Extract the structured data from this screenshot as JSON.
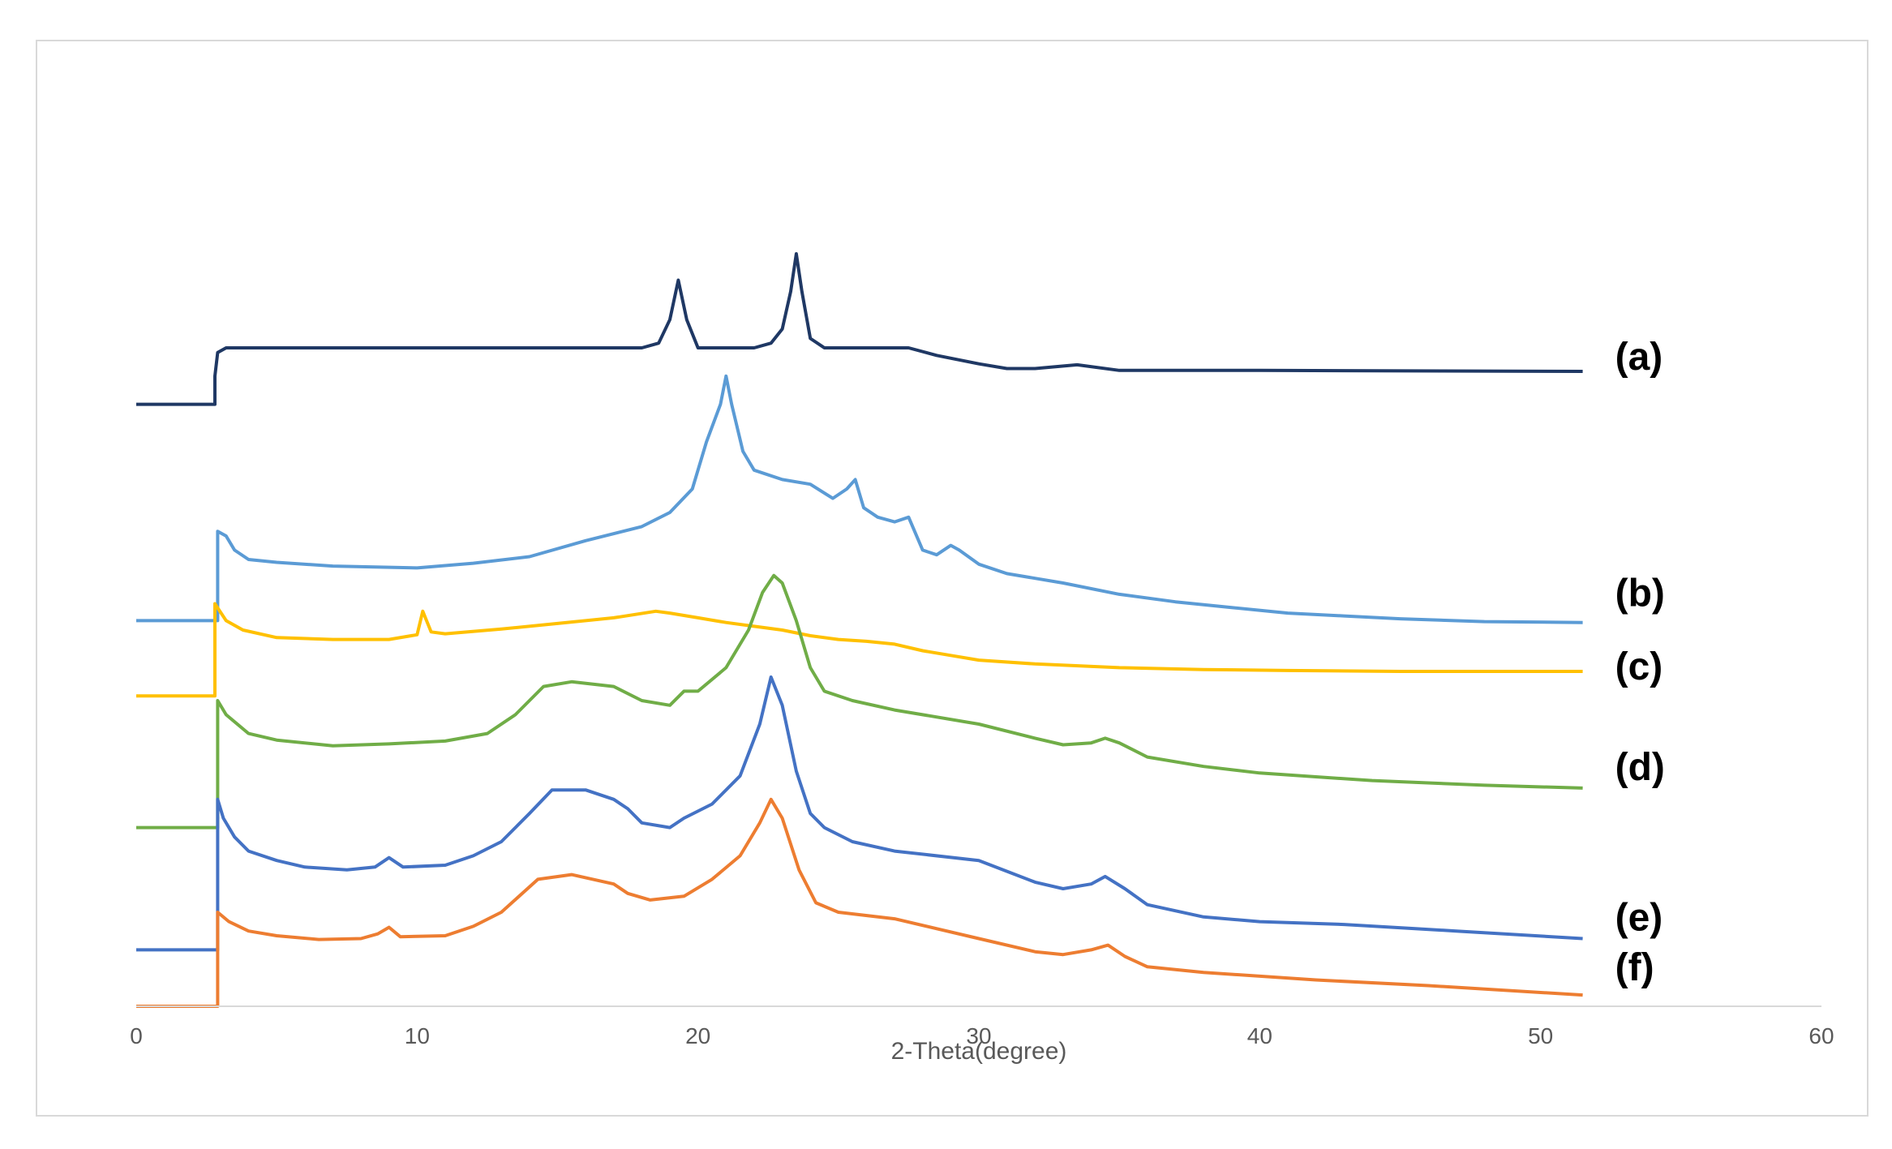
{
  "chart_data": {
    "type": "line",
    "title": "",
    "xlabel": "2-Theta(degree)",
    "ylabel": "",
    "xlim": [
      0,
      60
    ],
    "x_ticks": [
      0,
      10,
      20,
      30,
      40,
      50,
      60
    ],
    "ylim": [
      0,
      100
    ],
    "grid": false,
    "legend": "none",
    "series": [
      {
        "name": "(a)",
        "color": "#1f3864",
        "points": [
          [
            0,
            64
          ],
          [
            2.8,
            64
          ],
          [
            2.8,
            67
          ],
          [
            2.9,
            69.5
          ],
          [
            3.2,
            70
          ],
          [
            10,
            70
          ],
          [
            17,
            70
          ],
          [
            18,
            70
          ],
          [
            18.6,
            70.5
          ],
          [
            19,
            73
          ],
          [
            19.3,
            77.2
          ],
          [
            19.6,
            73
          ],
          [
            20,
            70
          ],
          [
            22,
            70
          ],
          [
            22.6,
            70.5
          ],
          [
            23,
            72
          ],
          [
            23.3,
            76
          ],
          [
            23.5,
            80
          ],
          [
            23.7,
            76
          ],
          [
            24,
            71
          ],
          [
            24.5,
            70
          ],
          [
            26,
            70
          ],
          [
            27.5,
            70
          ],
          [
            28.5,
            69.2
          ],
          [
            30,
            68.3
          ],
          [
            31,
            67.8
          ],
          [
            32,
            67.8
          ],
          [
            33.5,
            68.2
          ],
          [
            35,
            67.6
          ],
          [
            40,
            67.6
          ],
          [
            51.5,
            67.5
          ]
        ]
      },
      {
        "name": "(b)",
        "color": "#5b9bd5",
        "points": [
          [
            0,
            41
          ],
          [
            2.9,
            41
          ],
          [
            2.9,
            50.5
          ],
          [
            3.2,
            50
          ],
          [
            3.5,
            48.5
          ],
          [
            4,
            47.5
          ],
          [
            5,
            47.2
          ],
          [
            7,
            46.8
          ],
          [
            10,
            46.6
          ],
          [
            12,
            47.1
          ],
          [
            14,
            47.8
          ],
          [
            16,
            49.5
          ],
          [
            18,
            51
          ],
          [
            19,
            52.5
          ],
          [
            19.8,
            55
          ],
          [
            20.3,
            60
          ],
          [
            20.8,
            64
          ],
          [
            21,
            67
          ],
          [
            21.2,
            64
          ],
          [
            21.6,
            59
          ],
          [
            22,
            57
          ],
          [
            23,
            56
          ],
          [
            24,
            55.5
          ],
          [
            24.8,
            54
          ],
          [
            25.3,
            55
          ],
          [
            25.6,
            56
          ],
          [
            25.9,
            53
          ],
          [
            26.4,
            52
          ],
          [
            27,
            51.5
          ],
          [
            27.5,
            52
          ],
          [
            28,
            48.5
          ],
          [
            28.5,
            48
          ],
          [
            29,
            49
          ],
          [
            29.3,
            48.5
          ],
          [
            30,
            47
          ],
          [
            31,
            46
          ],
          [
            32,
            45.5
          ],
          [
            33,
            45
          ],
          [
            35,
            43.8
          ],
          [
            37,
            43
          ],
          [
            39,
            42.4
          ],
          [
            41,
            41.8
          ],
          [
            43,
            41.5
          ],
          [
            45,
            41.2
          ],
          [
            48,
            40.9
          ],
          [
            51.5,
            40.8
          ]
        ]
      },
      {
        "name": "(c)",
        "color": "#ffc000",
        "points": [
          [
            0,
            33
          ],
          [
            2.8,
            33
          ],
          [
            2.8,
            42.8
          ],
          [
            3.2,
            41
          ],
          [
            3.8,
            40
          ],
          [
            5,
            39.2
          ],
          [
            7,
            39
          ],
          [
            9,
            39
          ],
          [
            10,
            39.5
          ],
          [
            10.2,
            42
          ],
          [
            10.5,
            39.8
          ],
          [
            11,
            39.6
          ],
          [
            13,
            40.1
          ],
          [
            15,
            40.7
          ],
          [
            17,
            41.3
          ],
          [
            18.5,
            42
          ],
          [
            19,
            41.8
          ],
          [
            20,
            41.3
          ],
          [
            21,
            40.8
          ],
          [
            22,
            40.4
          ],
          [
            23,
            40
          ],
          [
            24,
            39.4
          ],
          [
            25,
            39
          ],
          [
            26,
            38.8
          ],
          [
            27,
            38.5
          ],
          [
            28,
            37.8
          ],
          [
            29,
            37.3
          ],
          [
            30,
            36.8
          ],
          [
            32,
            36.4
          ],
          [
            35,
            36
          ],
          [
            38,
            35.8
          ],
          [
            41,
            35.7
          ],
          [
            45,
            35.6
          ],
          [
            51.5,
            35.6
          ]
        ]
      },
      {
        "name": "(d)",
        "color": "#70ad47",
        "points": [
          [
            0,
            19
          ],
          [
            2.9,
            19
          ],
          [
            2.9,
            32.5
          ],
          [
            3.2,
            31
          ],
          [
            4,
            29
          ],
          [
            5,
            28.3
          ],
          [
            7,
            27.7
          ],
          [
            9,
            27.9
          ],
          [
            11,
            28.2
          ],
          [
            12.5,
            29
          ],
          [
            13.5,
            31
          ],
          [
            14.5,
            34
          ],
          [
            15.5,
            34.5
          ],
          [
            17,
            34
          ],
          [
            18,
            32.5
          ],
          [
            19,
            32
          ],
          [
            19.5,
            33.5
          ],
          [
            20,
            33.5
          ],
          [
            21,
            36
          ],
          [
            21.8,
            40
          ],
          [
            22.3,
            44
          ],
          [
            22.7,
            45.8
          ],
          [
            23,
            45
          ],
          [
            23.5,
            41
          ],
          [
            24,
            36
          ],
          [
            24.5,
            33.5
          ],
          [
            25.5,
            32.5
          ],
          [
            27,
            31.5
          ],
          [
            30,
            30
          ],
          [
            32,
            28.5
          ],
          [
            33,
            27.8
          ],
          [
            34,
            28
          ],
          [
            34.5,
            28.5
          ],
          [
            35,
            28
          ],
          [
            36,
            26.5
          ],
          [
            38,
            25.5
          ],
          [
            40,
            24.8
          ],
          [
            42,
            24.4
          ],
          [
            44,
            24
          ],
          [
            48,
            23.5
          ],
          [
            51.5,
            23.2
          ]
        ]
      },
      {
        "name": "(e)",
        "color": "#4472c4",
        "points": [
          [
            0,
            6
          ],
          [
            2.9,
            6
          ],
          [
            2.9,
            22
          ],
          [
            3.1,
            20
          ],
          [
            3.5,
            18
          ],
          [
            4,
            16.5
          ],
          [
            5,
            15.5
          ],
          [
            6,
            14.8
          ],
          [
            7.5,
            14.5
          ],
          [
            8.5,
            14.8
          ],
          [
            9,
            15.8
          ],
          [
            9.5,
            14.8
          ],
          [
            11,
            15
          ],
          [
            12,
            16
          ],
          [
            13,
            17.5
          ],
          [
            14,
            20.5
          ],
          [
            14.8,
            23
          ],
          [
            16,
            23
          ],
          [
            17,
            22
          ],
          [
            17.5,
            21
          ],
          [
            18,
            19.5
          ],
          [
            19,
            19
          ],
          [
            19.5,
            20
          ],
          [
            20.5,
            21.5
          ],
          [
            21.5,
            24.5
          ],
          [
            22.2,
            30
          ],
          [
            22.6,
            35
          ],
          [
            23,
            32
          ],
          [
            23.5,
            25
          ],
          [
            24,
            20.5
          ],
          [
            24.5,
            19
          ],
          [
            25.5,
            17.5
          ],
          [
            27,
            16.5
          ],
          [
            30,
            15.5
          ],
          [
            32,
            13.2
          ],
          [
            33,
            12.5
          ],
          [
            34,
            13
          ],
          [
            34.5,
            13.8
          ],
          [
            35.2,
            12.5
          ],
          [
            36,
            10.8
          ],
          [
            38,
            9.5
          ],
          [
            40,
            9
          ],
          [
            43,
            8.7
          ],
          [
            47,
            8
          ],
          [
            51.5,
            7.2
          ]
        ]
      },
      {
        "name": "(f)",
        "color": "#ed7d31",
        "points": [
          [
            0,
            0
          ],
          [
            2.9,
            0
          ],
          [
            2.9,
            10
          ],
          [
            3.3,
            9
          ],
          [
            4,
            8
          ],
          [
            5,
            7.5
          ],
          [
            6.5,
            7.1
          ],
          [
            8,
            7.2
          ],
          [
            8.6,
            7.7
          ],
          [
            9,
            8.4
          ],
          [
            9.4,
            7.4
          ],
          [
            11,
            7.5
          ],
          [
            12,
            8.5
          ],
          [
            13,
            10
          ],
          [
            14.3,
            13.5
          ],
          [
            15.5,
            14
          ],
          [
            17,
            13
          ],
          [
            17.5,
            12
          ],
          [
            18.3,
            11.3
          ],
          [
            19.5,
            11.7
          ],
          [
            20.5,
            13.5
          ],
          [
            21.5,
            16
          ],
          [
            22.2,
            19.5
          ],
          [
            22.6,
            22
          ],
          [
            23,
            20
          ],
          [
            23.6,
            14.5
          ],
          [
            24.2,
            11
          ],
          [
            25,
            10
          ],
          [
            27,
            9.3
          ],
          [
            30,
            7.2
          ],
          [
            32,
            5.8
          ],
          [
            33,
            5.5
          ],
          [
            34,
            6
          ],
          [
            34.6,
            6.5
          ],
          [
            35.2,
            5.3
          ],
          [
            36,
            4.2
          ],
          [
            38,
            3.6
          ],
          [
            42,
            2.8
          ],
          [
            46,
            2.2
          ],
          [
            51.5,
            1.2
          ]
        ]
      }
    ]
  }
}
